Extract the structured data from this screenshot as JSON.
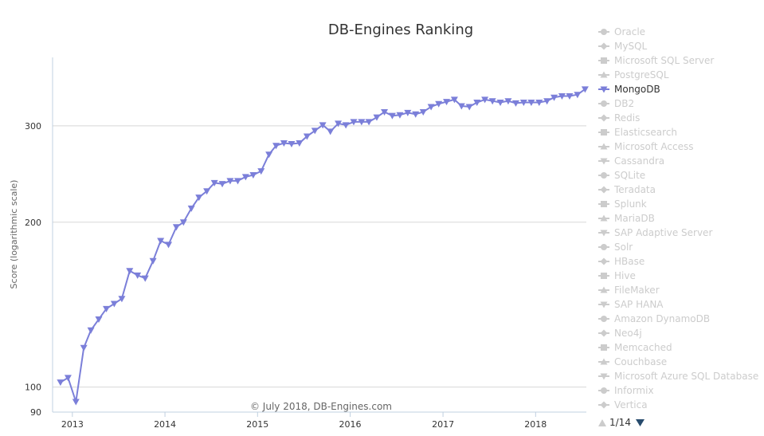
{
  "chart_data": {
    "type": "line",
    "title": "DB-Engines Ranking",
    "ylabel": "Score (logarithmic scale)",
    "yscale": "log",
    "ylim": [
      90,
      400
    ],
    "yticks": [
      90,
      100,
      200,
      300
    ],
    "xlim": [
      "2012-10-15",
      "2018-07-20"
    ],
    "xticks": [
      "2013",
      "2014",
      "2015",
      "2016",
      "2017",
      "2018"
    ],
    "credit": "© July 2018, DB-Engines.com",
    "grid": true,
    "legend_position": "right",
    "legend": [
      {
        "name": "Oracle",
        "marker": "circle",
        "active": false
      },
      {
        "name": "MySQL",
        "marker": "diamond",
        "active": false
      },
      {
        "name": "Microsoft SQL Server",
        "marker": "square",
        "active": false
      },
      {
        "name": "PostgreSQL",
        "marker": "triangle",
        "active": false
      },
      {
        "name": "MongoDB",
        "marker": "triangle-down",
        "active": true
      },
      {
        "name": "DB2",
        "marker": "circle",
        "active": false
      },
      {
        "name": "Redis",
        "marker": "diamond",
        "active": false
      },
      {
        "name": "Elasticsearch",
        "marker": "square",
        "active": false
      },
      {
        "name": "Microsoft Access",
        "marker": "triangle",
        "active": false
      },
      {
        "name": "Cassandra",
        "marker": "triangle-down",
        "active": false
      },
      {
        "name": "SQLite",
        "marker": "circle",
        "active": false
      },
      {
        "name": "Teradata",
        "marker": "diamond",
        "active": false
      },
      {
        "name": "Splunk",
        "marker": "square",
        "active": false
      },
      {
        "name": "MariaDB",
        "marker": "triangle",
        "active": false
      },
      {
        "name": "SAP Adaptive Server",
        "marker": "triangle-down",
        "active": false
      },
      {
        "name": "Solr",
        "marker": "circle",
        "active": false
      },
      {
        "name": "HBase",
        "marker": "diamond",
        "active": false
      },
      {
        "name": "Hive",
        "marker": "square",
        "active": false
      },
      {
        "name": "FileMaker",
        "marker": "triangle",
        "active": false
      },
      {
        "name": "SAP HANA",
        "marker": "triangle-down",
        "active": false
      },
      {
        "name": "Amazon DynamoDB",
        "marker": "circle",
        "active": false
      },
      {
        "name": "Neo4j",
        "marker": "diamond",
        "active": false
      },
      {
        "name": "Memcached",
        "marker": "square",
        "active": false
      },
      {
        "name": "Couchbase",
        "marker": "triangle",
        "active": false
      },
      {
        "name": "Microsoft Azure SQL Database",
        "marker": "triangle-down",
        "active": false
      },
      {
        "name": "Informix",
        "marker": "circle",
        "active": false
      },
      {
        "name": "Vertica",
        "marker": "diamond",
        "active": false
      }
    ],
    "legend_nav": {
      "page": "1/14"
    },
    "colors": {
      "series": "#7b7fd9",
      "inactive": "#cccccc",
      "active_text": "#333333",
      "grid": "#d8d8d8",
      "axis": "#c0d0e0",
      "nav_up": "#cccccc",
      "nav_down": "#274b6d"
    },
    "series": [
      {
        "name": "MongoDB",
        "x": [
          "2012-11",
          "2012-12",
          "2013-01",
          "2013-02",
          "2013-03",
          "2013-04",
          "2013-05",
          "2013-06",
          "2013-07",
          "2013-08",
          "2013-09",
          "2013-10",
          "2013-11",
          "2013-12",
          "2014-01",
          "2014-02",
          "2014-03",
          "2014-04",
          "2014-05",
          "2014-06",
          "2014-07",
          "2014-08",
          "2014-09",
          "2014-10",
          "2014-11",
          "2014-12",
          "2015-01",
          "2015-02",
          "2015-03",
          "2015-04",
          "2015-05",
          "2015-06",
          "2015-07",
          "2015-08",
          "2015-09",
          "2015-10",
          "2015-11",
          "2015-12",
          "2016-01",
          "2016-02",
          "2016-03",
          "2016-04",
          "2016-05",
          "2016-06",
          "2016-07",
          "2016-08",
          "2016-09",
          "2016-10",
          "2016-11",
          "2016-12",
          "2017-01",
          "2017-02",
          "2017-03",
          "2017-04",
          "2017-05",
          "2017-06",
          "2017-07",
          "2017-08",
          "2017-09",
          "2017-10",
          "2017-11",
          "2017-12",
          "2018-01",
          "2018-02",
          "2018-03",
          "2018-04",
          "2018-05",
          "2018-06",
          "2018-07"
        ],
        "values": [
          102,
          104,
          94,
          118,
          127,
          133,
          139,
          142,
          145,
          163,
          160,
          158,
          170,
          185,
          182,
          196,
          200,
          212,
          222,
          228,
          236,
          235,
          238,
          238,
          242,
          244,
          248,
          266,
          276,
          279,
          278,
          279,
          287,
          294,
          301,
          293,
          303,
          301,
          305,
          305,
          305,
          311,
          318,
          313,
          314,
          317,
          315,
          318,
          325,
          329,
          332,
          335,
          326,
          325,
          331,
          335,
          333,
          331,
          333,
          330,
          331,
          331,
          331,
          333,
          338,
          340,
          340,
          342,
          350
        ]
      }
    ]
  }
}
